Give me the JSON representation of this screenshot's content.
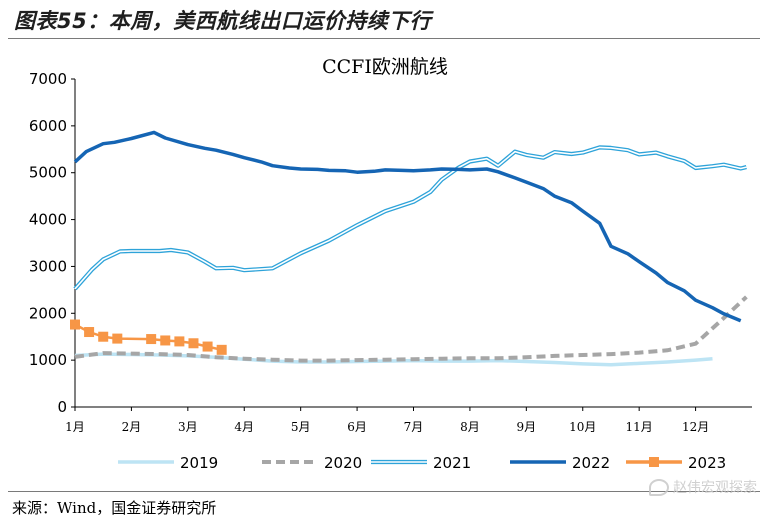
{
  "figure_title": "图表55：本周，美西航线出口运价持续下行",
  "source": "来源：Wind，国金证券研究所",
  "watermark": {
    "text": "赵伟宏观探索",
    "logo_icon": "wechat-icon"
  },
  "chart_data": {
    "type": "line",
    "title": "CCFI欧洲航线",
    "xlabel": "",
    "ylabel": "",
    "ylim": [
      0,
      7000
    ],
    "yticks": [
      0,
      1000,
      2000,
      3000,
      4000,
      5000,
      6000,
      7000
    ],
    "xlim": [
      1,
      13
    ],
    "xticks": [
      "1月",
      "2月",
      "3月",
      "4月",
      "5月",
      "6月",
      "7月",
      "8月",
      "9月",
      "10月",
      "11月",
      "12月"
    ],
    "grid": false,
    "legend": "bottom",
    "series": [
      {
        "name": "2019",
        "color": "#bde4f4",
        "style": "solid",
        "x": [
          1,
          1.5,
          2,
          2.5,
          3,
          3.5,
          4,
          4.5,
          5,
          5.5,
          6,
          6.5,
          7,
          7.5,
          8,
          8.5,
          9,
          9.5,
          10,
          10.5,
          11,
          11.5,
          12,
          12.3
        ],
        "y": [
          1100,
          1130,
          1120,
          1110,
          1090,
          1060,
          1020,
          980,
          960,
          960,
          970,
          980,
          990,
          980,
          980,
          990,
          970,
          950,
          920,
          900,
          930,
          960,
          1000,
          1030
        ]
      },
      {
        "name": "2020",
        "color": "#a6a6a6",
        "style": "dashed",
        "x": [
          1,
          1.5,
          2,
          2.5,
          3,
          3.5,
          4,
          4.5,
          5,
          5.5,
          6,
          6.5,
          7,
          7.5,
          8,
          8.5,
          9,
          9.5,
          10,
          10.5,
          11,
          11.5,
          12,
          12.5,
          12.9
        ],
        "y": [
          1070,
          1150,
          1140,
          1130,
          1110,
          1060,
          1030,
          1010,
          990,
          990,
          1000,
          1010,
          1020,
          1030,
          1040,
          1040,
          1060,
          1090,
          1110,
          1130,
          1160,
          1210,
          1350,
          1900,
          2350
        ]
      },
      {
        "name": "2021",
        "color": "#2ea3d9",
        "style": "double",
        "x": [
          1,
          1.3,
          1.5,
          1.8,
          2,
          2.5,
          2.7,
          3,
          3.3,
          3.5,
          3.8,
          4,
          4.5,
          5,
          5.5,
          6,
          6.5,
          7,
          7.3,
          7.5,
          7.8,
          8,
          8.3,
          8.5,
          8.8,
          9,
          9.3,
          9.5,
          9.8,
          10,
          10.3,
          10.5,
          10.8,
          11,
          11.3,
          11.5,
          11.8,
          12,
          12.3,
          12.5,
          12.8,
          12.9
        ],
        "y": [
          2520,
          2930,
          3150,
          3320,
          3330,
          3330,
          3350,
          3300,
          3100,
          2960,
          2970,
          2920,
          2960,
          3280,
          3550,
          3880,
          4180,
          4380,
          4590,
          4850,
          5110,
          5240,
          5300,
          5150,
          5450,
          5380,
          5320,
          5440,
          5400,
          5430,
          5540,
          5530,
          5480,
          5390,
          5430,
          5350,
          5250,
          5100,
          5140,
          5170,
          5090,
          5120
        ]
      },
      {
        "name": "2022",
        "color": "#1565b4",
        "style": "solid",
        "x": [
          1,
          1.2,
          1.5,
          1.7,
          2,
          2.4,
          2.6,
          3,
          3.3,
          3.5,
          3.8,
          4,
          4.3,
          4.5,
          4.8,
          5,
          5.3,
          5.5,
          5.8,
          6,
          6.3,
          6.5,
          6.8,
          7,
          7.3,
          7.5,
          7.8,
          8,
          8.3,
          8.5,
          8.8,
          9,
          9.3,
          9.5,
          9.8,
          10,
          10.3,
          10.5,
          10.8,
          11,
          11.3,
          11.5,
          11.8,
          12,
          12.3,
          12.5,
          12.8
        ],
        "y": [
          5230,
          5450,
          5620,
          5650,
          5730,
          5860,
          5740,
          5600,
          5520,
          5480,
          5390,
          5320,
          5230,
          5150,
          5100,
          5080,
          5070,
          5050,
          5040,
          5010,
          5030,
          5060,
          5050,
          5040,
          5060,
          5080,
          5070,
          5060,
          5080,
          5020,
          4890,
          4800,
          4660,
          4500,
          4360,
          4180,
          3920,
          3430,
          3270,
          3100,
          2860,
          2660,
          2480,
          2280,
          2120,
          1990,
          1840
        ]
      },
      {
        "name": "2023",
        "color": "#f79646",
        "style": "marker",
        "x": [
          1,
          1.25,
          1.5,
          1.75,
          2.35,
          2.6,
          2.85,
          3.1,
          3.35,
          3.6
        ],
        "y": [
          1760,
          1600,
          1500,
          1460,
          1450,
          1420,
          1400,
          1360,
          1290,
          1220
        ]
      }
    ]
  }
}
